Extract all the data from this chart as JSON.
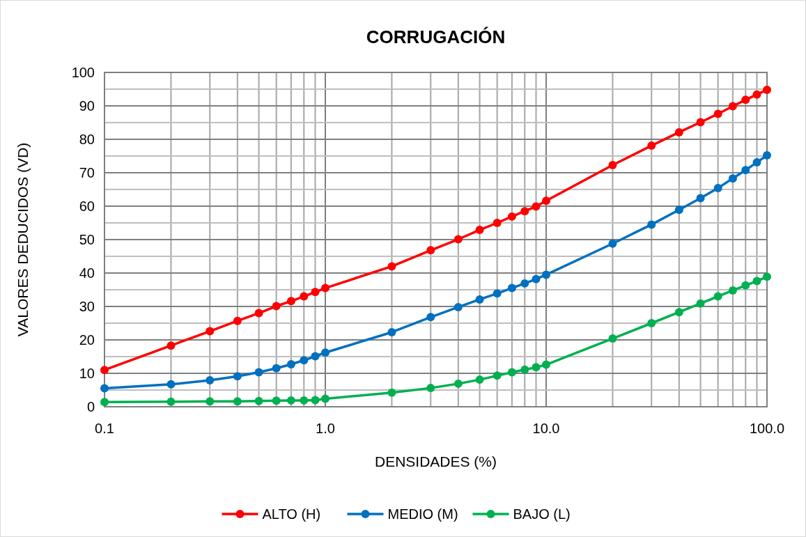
{
  "chart_data": {
    "type": "line",
    "title": "CORRUGACIÓN",
    "xlabel": "DENSIDADES (%)",
    "ylabel": "VALORES DEDUCIDOS (VD)",
    "log": "x",
    "grid": true,
    "legend": "bottom",
    "marker": "circle",
    "line_style": "solid",
    "x": [
      0.1,
      0.2,
      0.3,
      0.4,
      0.5,
      0.6,
      0.7,
      0.8,
      0.9,
      1,
      2,
      3,
      4,
      5,
      6,
      7,
      8,
      9,
      10,
      20,
      30,
      40,
      50,
      60,
      70,
      80,
      90,
      100
    ],
    "xlim": [
      0.1,
      100
    ],
    "xticks": [
      0.1,
      {
        "value": 0.2,
        "label": null
      },
      {
        "value": 0.3,
        "label": null
      },
      {
        "value": 0.4,
        "label": null
      },
      {
        "value": 0.5,
        "label": null
      },
      {
        "value": 0.6,
        "label": null
      },
      {
        "value": 0.7,
        "label": null
      },
      {
        "value": 0.8,
        "label": null
      },
      {
        "value": 0.9,
        "label": null
      },
      {
        "value": 1,
        "label": "1.0"
      },
      {
        "value": 2,
        "label": null
      },
      {
        "value": 3,
        "label": null
      },
      {
        "value": 4,
        "label": null
      },
      {
        "value": 5,
        "label": null
      },
      {
        "value": 6,
        "label": null
      },
      {
        "value": 7,
        "label": null
      },
      {
        "value": 8,
        "label": null
      },
      {
        "value": 9,
        "label": null
      },
      {
        "value": 10,
        "label": "10.0"
      },
      {
        "value": 20,
        "label": null
      },
      {
        "value": 30,
        "label": null
      },
      {
        "value": 40,
        "label": null
      },
      {
        "value": 50,
        "label": null
      },
      {
        "value": 60,
        "label": null
      },
      {
        "value": 70,
        "label": null
      },
      {
        "value": 80,
        "label": null
      },
      {
        "value": 90,
        "label": null
      },
      {
        "value": 100,
        "label": "100.0"
      }
    ],
    "ylim": [
      0,
      100
    ],
    "yticks": [
      0,
      {
        "value": 5,
        "label": null
      },
      10,
      {
        "value": 15,
        "label": null
      },
      20,
      {
        "value": 25,
        "label": null
      },
      30,
      {
        "value": 35,
        "label": null
      },
      40,
      {
        "value": 45,
        "label": null
      },
      50,
      {
        "value": 55,
        "label": null
      },
      60,
      {
        "value": 65,
        "label": null
      },
      70,
      {
        "value": 75,
        "label": null
      },
      80,
      {
        "value": 85,
        "label": null
      },
      90,
      {
        "value": 95,
        "label": null
      },
      100
    ],
    "series": [
      {
        "name": "ALTO (H)",
        "color": "#ff0000",
        "values": [
          11,
          18.3,
          22.6,
          25.7,
          28,
          30.1,
          31.6,
          33,
          34.3,
          35.5,
          42,
          46.8,
          50.1,
          52.9,
          55,
          56.9,
          58.5,
          59.9,
          61.6,
          72.3,
          78.1,
          82.1,
          85.1,
          87.6,
          89.9,
          91.8,
          93.4,
          94.8
        ]
      },
      {
        "name": "MEDIO (M)",
        "color": "#0070c0",
        "values": [
          5.5,
          6.7,
          7.9,
          9.1,
          10.3,
          11.5,
          12.7,
          13.9,
          15.1,
          16.2,
          22.3,
          26.8,
          29.8,
          32.1,
          33.9,
          35.5,
          36.9,
          38.2,
          39.5,
          48.8,
          54.5,
          58.9,
          62.4,
          65.4,
          68.3,
          70.8,
          73.1,
          75.2
        ]
      },
      {
        "name": "BAJO (L)",
        "color": "#00b050",
        "values": [
          1.4,
          1.5,
          1.6,
          1.6,
          1.7,
          1.8,
          1.9,
          1.9,
          2.0,
          2.4,
          4.2,
          5.6,
          6.9,
          8.1,
          9.3,
          10.3,
          11.1,
          11.8,
          12.6,
          20.4,
          25.0,
          28.3,
          30.9,
          33.0,
          34.8,
          36.3,
          37.6,
          38.9
        ]
      }
    ]
  }
}
